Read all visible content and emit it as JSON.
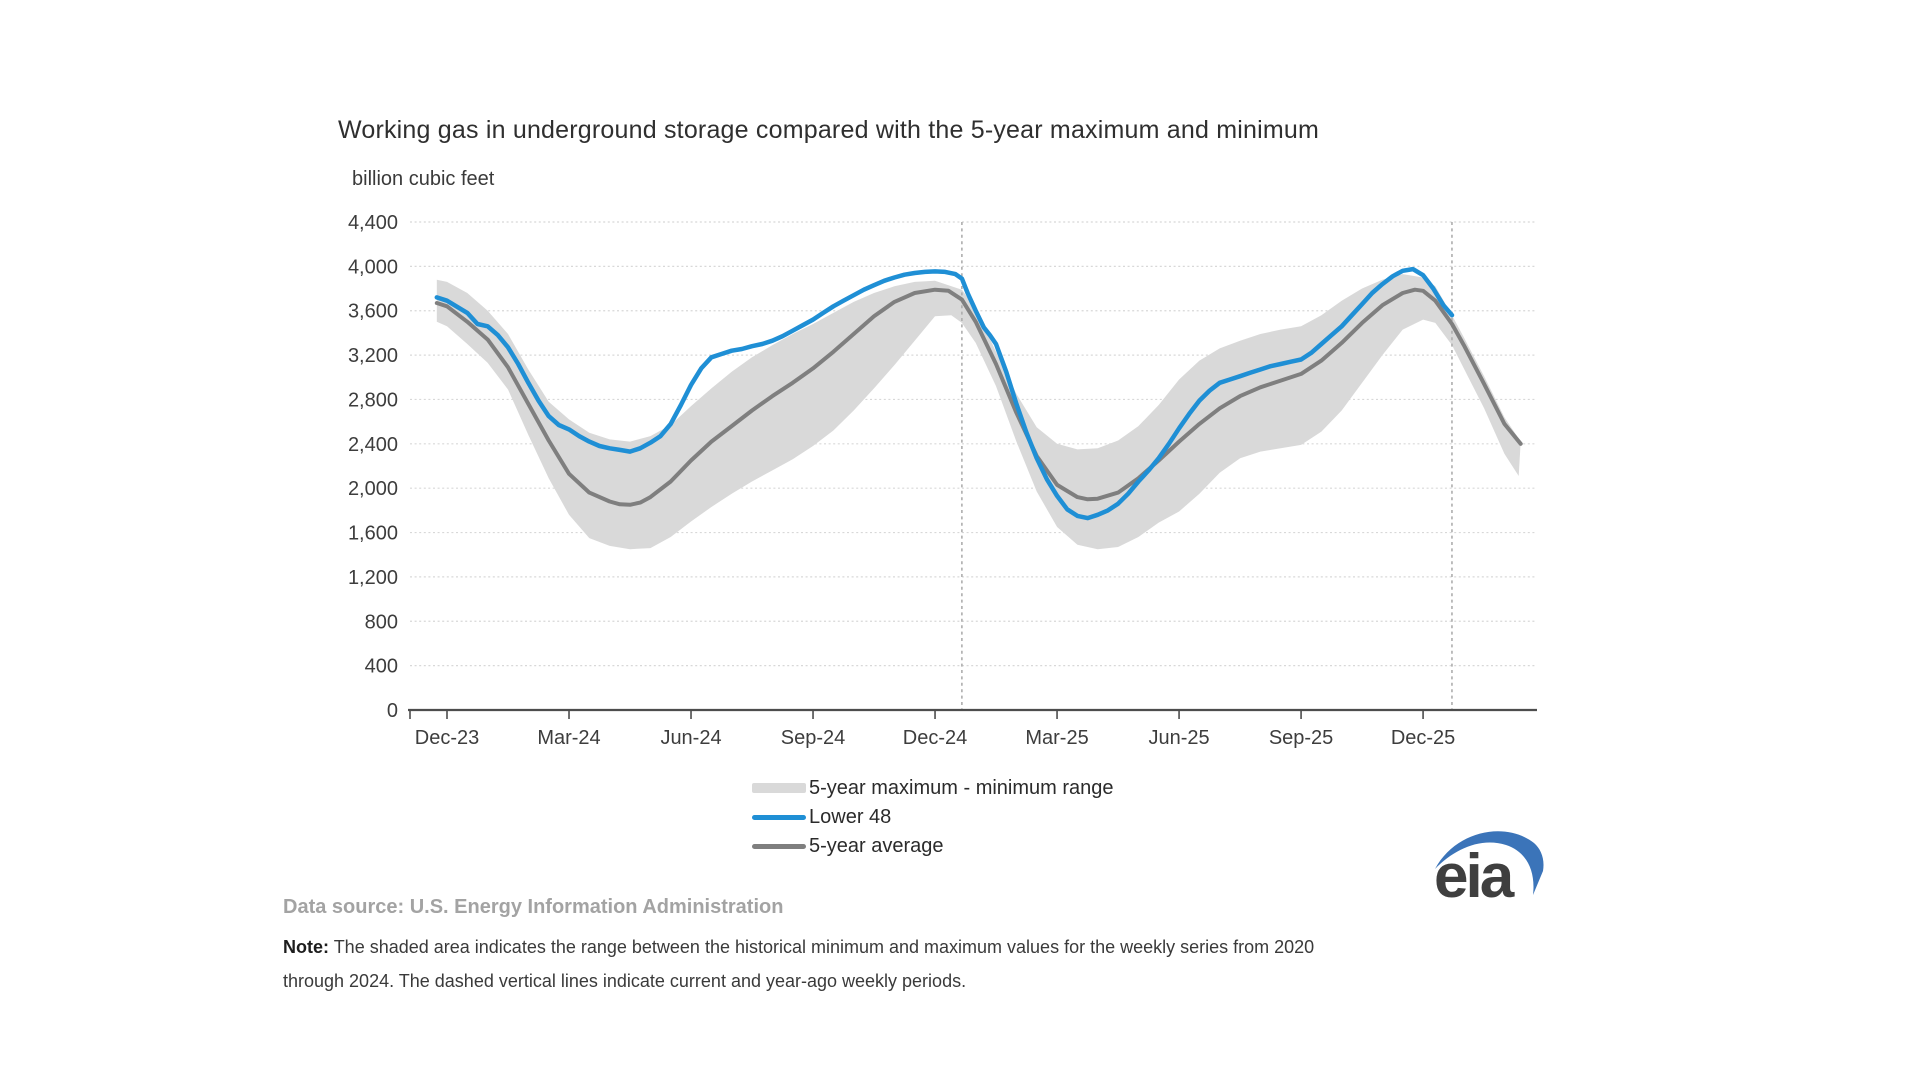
{
  "title": "Working gas in underground storage compared with the 5-year maximum and minimum",
  "unit_label": "billion cubic feet",
  "legend": [
    {
      "label": "5-year maximum - minimum range",
      "type": "band",
      "color": "#d9d9d9"
    },
    {
      "label": "Lower 48",
      "type": "line",
      "color": "#1f8fd5"
    },
    {
      "label": "5-year average",
      "type": "line",
      "color": "#7f7f7f"
    }
  ],
  "data_source": {
    "label": "Data source:",
    "text": "U.S. Energy Information Administration"
  },
  "note": {
    "label": "Note:",
    "line1": "The shaded area indicates the range between the historical minimum and maximum values for the weekly series from 2020",
    "line2": "through 2024. The dashed vertical lines indicate current and year-ago weekly periods."
  },
  "logo": {
    "text": "eia",
    "swoosh_color": "#3b74b9",
    "text_color": "#3f3f3f"
  },
  "chart_data": {
    "type": "line",
    "title": "Working gas in underground storage compared with the 5-year maximum and minimum",
    "ylabel": "billion cubic feet",
    "ylim": [
      0,
      4400
    ],
    "y_ticks": [
      0,
      400,
      800,
      1200,
      1600,
      2000,
      2400,
      2800,
      3200,
      3600,
      4000,
      4400
    ],
    "x_tick_labels": [
      "Dec-23",
      "Mar-24",
      "Jun-24",
      "Sep-24",
      "Dec-24",
      "Mar-25",
      "Jun-25",
      "Sep-25",
      "Dec-25"
    ],
    "x_tick_months": [
      0,
      3,
      6,
      9,
      12,
      15,
      18,
      21,
      24
    ],
    "grid": true,
    "legend_position": "bottom",
    "dashed_vlines_months": [
      12.66,
      24.71
    ],
    "colors": {
      "gridline": "#d8d8d8",
      "axis": "#4d4d4d",
      "dashed_line": "#adadad"
    },
    "series": [
      {
        "name": "5-year maximum",
        "role": "band_top",
        "color": "#d9d9d9",
        "points": [
          [
            -0.25,
            3880
          ],
          [
            0,
            3860
          ],
          [
            0.5,
            3760
          ],
          [
            1,
            3600
          ],
          [
            1.5,
            3390
          ],
          [
            2,
            3070
          ],
          [
            2.5,
            2780
          ],
          [
            3,
            2620
          ],
          [
            3.5,
            2500
          ],
          [
            4,
            2440
          ],
          [
            4.5,
            2420
          ],
          [
            5,
            2470
          ],
          [
            5.5,
            2570
          ],
          [
            6,
            2740
          ],
          [
            6.5,
            2900
          ],
          [
            7,
            3050
          ],
          [
            7.5,
            3180
          ],
          [
            8,
            3290
          ],
          [
            8.5,
            3390
          ],
          [
            9,
            3480
          ],
          [
            9.5,
            3580
          ],
          [
            10,
            3680
          ],
          [
            10.5,
            3760
          ],
          [
            11,
            3820
          ],
          [
            11.5,
            3860
          ],
          [
            12,
            3870
          ],
          [
            12.66,
            3790
          ],
          [
            13,
            3620
          ],
          [
            13.5,
            3230
          ],
          [
            14,
            2850
          ],
          [
            14.5,
            2550
          ],
          [
            15,
            2400
          ],
          [
            15.5,
            2350
          ],
          [
            16,
            2360
          ],
          [
            16.5,
            2430
          ],
          [
            17,
            2560
          ],
          [
            17.5,
            2750
          ],
          [
            18,
            2980
          ],
          [
            18.5,
            3150
          ],
          [
            19,
            3260
          ],
          [
            19.5,
            3330
          ],
          [
            20,
            3390
          ],
          [
            20.5,
            3430
          ],
          [
            21,
            3460
          ],
          [
            21.5,
            3560
          ],
          [
            22,
            3690
          ],
          [
            22.5,
            3800
          ],
          [
            23,
            3880
          ],
          [
            23.5,
            3930
          ],
          [
            24,
            3900
          ],
          [
            24.3,
            3820
          ],
          [
            24.71,
            3560
          ],
          [
            25,
            3360
          ],
          [
            25.5,
            3010
          ],
          [
            26,
            2640
          ],
          [
            26.4,
            2420
          ]
        ]
      },
      {
        "name": "5-year minimum",
        "role": "band_bottom",
        "color": "#d9d9d9",
        "points": [
          [
            -0.25,
            3500
          ],
          [
            0,
            3460
          ],
          [
            0.5,
            3300
          ],
          [
            1,
            3130
          ],
          [
            1.5,
            2890
          ],
          [
            2,
            2480
          ],
          [
            2.5,
            2090
          ],
          [
            3,
            1760
          ],
          [
            3.5,
            1550
          ],
          [
            4,
            1480
          ],
          [
            4.5,
            1450
          ],
          [
            5,
            1460
          ],
          [
            5.5,
            1560
          ],
          [
            6,
            1700
          ],
          [
            6.5,
            1830
          ],
          [
            7,
            1950
          ],
          [
            7.5,
            2060
          ],
          [
            8,
            2160
          ],
          [
            8.5,
            2260
          ],
          [
            9,
            2380
          ],
          [
            9.5,
            2520
          ],
          [
            10,
            2700
          ],
          [
            10.5,
            2900
          ],
          [
            11,
            3110
          ],
          [
            11.5,
            3330
          ],
          [
            12,
            3550
          ],
          [
            12.4,
            3560
          ],
          [
            12.66,
            3490
          ],
          [
            13,
            3310
          ],
          [
            13.5,
            2920
          ],
          [
            14,
            2420
          ],
          [
            14.5,
            1970
          ],
          [
            15,
            1650
          ],
          [
            15.5,
            1490
          ],
          [
            16,
            1450
          ],
          [
            16.5,
            1470
          ],
          [
            17,
            1560
          ],
          [
            17.5,
            1690
          ],
          [
            18,
            1790
          ],
          [
            18.5,
            1950
          ],
          [
            19,
            2140
          ],
          [
            19.5,
            2270
          ],
          [
            20,
            2330
          ],
          [
            20.5,
            2360
          ],
          [
            21,
            2390
          ],
          [
            21.5,
            2510
          ],
          [
            22,
            2700
          ],
          [
            22.5,
            2950
          ],
          [
            23,
            3200
          ],
          [
            23.5,
            3430
          ],
          [
            24,
            3520
          ],
          [
            24.3,
            3490
          ],
          [
            24.71,
            3290
          ],
          [
            25,
            3080
          ],
          [
            25.5,
            2720
          ],
          [
            26,
            2310
          ],
          [
            26.35,
            2110
          ]
        ]
      },
      {
        "name": "5-year average",
        "role": "line",
        "color": "#7f7f7f",
        "stroke_width": 4,
        "points": [
          [
            -0.25,
            3670
          ],
          [
            0,
            3640
          ],
          [
            0.5,
            3500
          ],
          [
            1,
            3340
          ],
          [
            1.5,
            3090
          ],
          [
            2,
            2760
          ],
          [
            2.5,
            2430
          ],
          [
            3,
            2130
          ],
          [
            3.5,
            1960
          ],
          [
            4,
            1880
          ],
          [
            4.25,
            1855
          ],
          [
            4.5,
            1850
          ],
          [
            4.75,
            1870
          ],
          [
            5,
            1920
          ],
          [
            5.5,
            2060
          ],
          [
            6,
            2250
          ],
          [
            6.5,
            2420
          ],
          [
            7,
            2560
          ],
          [
            7.5,
            2700
          ],
          [
            8,
            2830
          ],
          [
            8.5,
            2950
          ],
          [
            9,
            3080
          ],
          [
            9.5,
            3230
          ],
          [
            10,
            3390
          ],
          [
            10.5,
            3550
          ],
          [
            11,
            3680
          ],
          [
            11.5,
            3760
          ],
          [
            12,
            3790
          ],
          [
            12.33,
            3780
          ],
          [
            12.66,
            3700
          ],
          [
            13,
            3500
          ],
          [
            13.5,
            3120
          ],
          [
            14,
            2680
          ],
          [
            14.5,
            2290
          ],
          [
            15,
            2030
          ],
          [
            15.5,
            1920
          ],
          [
            15.75,
            1900
          ],
          [
            16,
            1905
          ],
          [
            16.5,
            1960
          ],
          [
            17,
            2090
          ],
          [
            17.5,
            2250
          ],
          [
            18,
            2420
          ],
          [
            18.5,
            2580
          ],
          [
            19,
            2720
          ],
          [
            19.5,
            2830
          ],
          [
            20,
            2910
          ],
          [
            20.5,
            2970
          ],
          [
            21,
            3030
          ],
          [
            21.5,
            3150
          ],
          [
            22,
            3310
          ],
          [
            22.5,
            3490
          ],
          [
            23,
            3650
          ],
          [
            23.5,
            3760
          ],
          [
            23.8,
            3790
          ],
          [
            24,
            3780
          ],
          [
            24.3,
            3690
          ],
          [
            24.71,
            3480
          ],
          [
            25,
            3290
          ],
          [
            25.5,
            2940
          ],
          [
            26,
            2580
          ],
          [
            26.4,
            2400
          ]
        ]
      },
      {
        "name": "Lower 48",
        "role": "line",
        "color": "#1f8fd5",
        "stroke_width": 4.5,
        "points": [
          [
            -0.25,
            3720
          ],
          [
            0,
            3690
          ],
          [
            0.5,
            3580
          ],
          [
            0.75,
            3480
          ],
          [
            1,
            3460
          ],
          [
            1.25,
            3380
          ],
          [
            1.5,
            3270
          ],
          [
            1.75,
            3120
          ],
          [
            2,
            2950
          ],
          [
            2.25,
            2790
          ],
          [
            2.5,
            2650
          ],
          [
            2.75,
            2570
          ],
          [
            3,
            2530
          ],
          [
            3.25,
            2470
          ],
          [
            3.5,
            2420
          ],
          [
            3.75,
            2380
          ],
          [
            4,
            2360
          ],
          [
            4.25,
            2345
          ],
          [
            4.5,
            2330
          ],
          [
            4.75,
            2360
          ],
          [
            5,
            2410
          ],
          [
            5.25,
            2470
          ],
          [
            5.5,
            2580
          ],
          [
            5.75,
            2750
          ],
          [
            6,
            2930
          ],
          [
            6.25,
            3080
          ],
          [
            6.5,
            3180
          ],
          [
            6.75,
            3210
          ],
          [
            7,
            3240
          ],
          [
            7.25,
            3255
          ],
          [
            7.5,
            3280
          ],
          [
            7.75,
            3300
          ],
          [
            8,
            3330
          ],
          [
            8.25,
            3370
          ],
          [
            8.5,
            3420
          ],
          [
            8.75,
            3470
          ],
          [
            9,
            3520
          ],
          [
            9.25,
            3580
          ],
          [
            9.5,
            3640
          ],
          [
            9.75,
            3690
          ],
          [
            10,
            3740
          ],
          [
            10.25,
            3790
          ],
          [
            10.5,
            3830
          ],
          [
            10.75,
            3870
          ],
          [
            11,
            3900
          ],
          [
            11.25,
            3925
          ],
          [
            11.5,
            3940
          ],
          [
            11.75,
            3950
          ],
          [
            12,
            3955
          ],
          [
            12.25,
            3950
          ],
          [
            12.5,
            3930
          ],
          [
            12.66,
            3890
          ],
          [
            12.8,
            3760
          ],
          [
            13,
            3600
          ],
          [
            13.2,
            3450
          ],
          [
            13.35,
            3380
          ],
          [
            13.5,
            3300
          ],
          [
            13.75,
            3050
          ],
          [
            14,
            2760
          ],
          [
            14.25,
            2500
          ],
          [
            14.5,
            2270
          ],
          [
            14.75,
            2080
          ],
          [
            15,
            1930
          ],
          [
            15.25,
            1810
          ],
          [
            15.5,
            1750
          ],
          [
            15.75,
            1730
          ],
          [
            16,
            1760
          ],
          [
            16.25,
            1800
          ],
          [
            16.5,
            1860
          ],
          [
            16.75,
            1950
          ],
          [
            17,
            2060
          ],
          [
            17.25,
            2160
          ],
          [
            17.5,
            2270
          ],
          [
            17.75,
            2400
          ],
          [
            18,
            2540
          ],
          [
            18.25,
            2670
          ],
          [
            18.5,
            2790
          ],
          [
            18.75,
            2880
          ],
          [
            19,
            2950
          ],
          [
            19.25,
            2980
          ],
          [
            19.5,
            3010
          ],
          [
            19.75,
            3040
          ],
          [
            20,
            3070
          ],
          [
            20.25,
            3100
          ],
          [
            20.5,
            3120
          ],
          [
            20.75,
            3140
          ],
          [
            21,
            3160
          ],
          [
            21.25,
            3220
          ],
          [
            21.5,
            3300
          ],
          [
            21.75,
            3380
          ],
          [
            22,
            3460
          ],
          [
            22.25,
            3560
          ],
          [
            22.5,
            3660
          ],
          [
            22.75,
            3760
          ],
          [
            23,
            3840
          ],
          [
            23.25,
            3910
          ],
          [
            23.5,
            3960
          ],
          [
            23.75,
            3975
          ],
          [
            24,
            3920
          ],
          [
            24.25,
            3800
          ],
          [
            24.5,
            3650
          ],
          [
            24.71,
            3560
          ]
        ]
      }
    ]
  }
}
